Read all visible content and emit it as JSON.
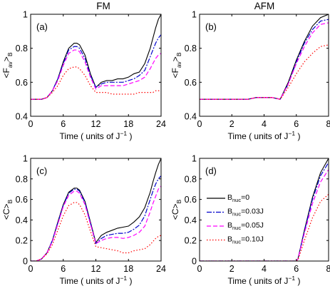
{
  "column_titles": [
    "FM",
    "AFM"
  ],
  "legend": {
    "entries": [
      {
        "label_main": "B",
        "label_sub": "nuc",
        "label_rest": "=0"
      },
      {
        "label_main": "B",
        "label_sub": "nuc",
        "label_rest": "=0.03J"
      },
      {
        "label_main": "B",
        "label_sub": "nuc",
        "label_rest": "=0.05J"
      },
      {
        "label_main": "B",
        "label_sub": "nuc",
        "label_rest": "=0.10J"
      }
    ]
  },
  "styles": {
    "colors": [
      "#000000",
      "#0000cc",
      "#ff00ff",
      "#ff0000"
    ],
    "dashes": [
      "",
      "7,2,2,2",
      "6,3",
      "1.5,2.5"
    ]
  },
  "chart_data": [
    {
      "type": "line",
      "panel_label": "(a)",
      "ylabel_main": "<F",
      "ylabel_sub": "av",
      "ylabel_mid": ">",
      "ylabel_sub2": "B",
      "xlabel_main": "Time ( units of J",
      "xlabel_sup": "−1",
      "xlabel_end": " )",
      "xlim": [
        0,
        24
      ],
      "ylim": [
        0.4,
        1.0
      ],
      "xticks": [
        "0",
        "6",
        "12",
        "18",
        "24"
      ],
      "yticks": [
        "0.4",
        "0.6",
        "0.8",
        "1"
      ],
      "x": [
        0,
        1,
        2,
        3,
        4,
        5,
        6,
        7,
        8,
        8.5,
        9,
        10,
        11,
        12,
        13,
        14,
        15,
        16,
        17,
        18,
        19,
        20,
        21,
        22,
        22.5,
        23,
        23.5,
        24
      ],
      "series": [
        {
          "values": [
            0.5,
            0.5,
            0.5,
            0.51,
            0.55,
            0.62,
            0.72,
            0.8,
            0.83,
            0.83,
            0.82,
            0.76,
            0.65,
            0.57,
            0.6,
            0.61,
            0.61,
            0.62,
            0.62,
            0.63,
            0.65,
            0.66,
            0.71,
            0.8,
            0.86,
            0.92,
            0.97,
            1.0
          ]
        },
        {
          "values": [
            0.5,
            0.5,
            0.5,
            0.51,
            0.55,
            0.62,
            0.71,
            0.79,
            0.81,
            0.81,
            0.8,
            0.74,
            0.64,
            0.57,
            0.59,
            0.6,
            0.6,
            0.6,
            0.6,
            0.61,
            0.62,
            0.64,
            0.67,
            0.75,
            0.79,
            0.83,
            0.86,
            0.88
          ]
        },
        {
          "values": [
            0.5,
            0.5,
            0.5,
            0.51,
            0.55,
            0.61,
            0.7,
            0.77,
            0.79,
            0.79,
            0.78,
            0.72,
            0.63,
            0.56,
            0.58,
            0.58,
            0.58,
            0.58,
            0.58,
            0.59,
            0.6,
            0.61,
            0.63,
            0.68,
            0.71,
            0.74,
            0.76,
            0.77
          ]
        },
        {
          "values": [
            0.5,
            0.5,
            0.5,
            0.51,
            0.54,
            0.58,
            0.64,
            0.68,
            0.69,
            0.69,
            0.68,
            0.64,
            0.58,
            0.54,
            0.54,
            0.54,
            0.53,
            0.53,
            0.53,
            0.53,
            0.53,
            0.54,
            0.54,
            0.54,
            0.54,
            0.55,
            0.55,
            0.55
          ]
        }
      ]
    },
    {
      "type": "line",
      "panel_label": "(b)",
      "ylabel_main": "<F",
      "ylabel_sub": "av",
      "ylabel_mid": ">",
      "ylabel_sub2": "B",
      "xlabel_main": "Time ( units of J",
      "xlabel_sup": "−1",
      "xlabel_end": " )",
      "xlim": [
        0,
        8
      ],
      "ylim": [
        0.4,
        1.0
      ],
      "xticks": [
        "0",
        "2",
        "4",
        "6",
        "8"
      ],
      "yticks": [
        "0.4",
        "0.6",
        "0.8",
        "1"
      ],
      "x": [
        0,
        1,
        2,
        3,
        3.5,
        4,
        4.5,
        5,
        5.5,
        6,
        6.5,
        7,
        7.5,
        8
      ],
      "series": [
        {
          "values": [
            0.5,
            0.5,
            0.5,
            0.5,
            0.51,
            0.51,
            0.51,
            0.5,
            0.6,
            0.73,
            0.84,
            0.93,
            0.98,
            1.0
          ]
        },
        {
          "values": [
            0.5,
            0.5,
            0.5,
            0.5,
            0.51,
            0.51,
            0.51,
            0.5,
            0.59,
            0.72,
            0.83,
            0.91,
            0.96,
            0.97
          ]
        },
        {
          "values": [
            0.5,
            0.5,
            0.5,
            0.5,
            0.51,
            0.51,
            0.51,
            0.5,
            0.59,
            0.71,
            0.81,
            0.89,
            0.94,
            0.95
          ]
        },
        {
          "values": [
            0.5,
            0.5,
            0.5,
            0.5,
            0.51,
            0.51,
            0.51,
            0.5,
            0.57,
            0.65,
            0.72,
            0.77,
            0.81,
            0.82
          ]
        }
      ]
    },
    {
      "type": "line",
      "panel_label": "(c)",
      "ylabel_main": "<C>",
      "ylabel_sub": "B",
      "xlabel_main": "Time ( units of J",
      "xlabel_sup": "−1",
      "xlabel_end": " )",
      "xlim": [
        0,
        24
      ],
      "ylim": [
        0,
        1.0
      ],
      "xticks": [
        "0",
        "6",
        "12",
        "18",
        "24"
      ],
      "yticks": [
        "0",
        "0.2",
        "0.4",
        "0.6",
        "0.8",
        "1"
      ],
      "x": [
        0,
        1,
        2,
        3,
        4,
        5,
        6,
        7,
        8,
        8.5,
        9,
        10,
        11,
        12,
        13,
        14,
        15,
        16,
        17,
        18,
        19,
        20,
        21,
        22,
        22.5,
        23,
        23.5,
        24
      ],
      "series": [
        {
          "values": [
            0.0,
            0.0,
            0.02,
            0.08,
            0.2,
            0.38,
            0.55,
            0.67,
            0.71,
            0.71,
            0.69,
            0.58,
            0.38,
            0.18,
            0.25,
            0.28,
            0.3,
            0.32,
            0.33,
            0.34,
            0.38,
            0.43,
            0.52,
            0.67,
            0.77,
            0.86,
            0.94,
            1.0
          ]
        },
        {
          "values": [
            0.0,
            0.0,
            0.02,
            0.08,
            0.2,
            0.37,
            0.54,
            0.66,
            0.7,
            0.7,
            0.68,
            0.57,
            0.37,
            0.17,
            0.22,
            0.25,
            0.26,
            0.27,
            0.27,
            0.28,
            0.31,
            0.35,
            0.44,
            0.6,
            0.68,
            0.75,
            0.8,
            0.83
          ]
        },
        {
          "values": [
            0.0,
            0.0,
            0.02,
            0.08,
            0.19,
            0.36,
            0.53,
            0.64,
            0.68,
            0.68,
            0.66,
            0.55,
            0.36,
            0.17,
            0.2,
            0.22,
            0.23,
            0.23,
            0.22,
            0.23,
            0.25,
            0.28,
            0.34,
            0.48,
            0.56,
            0.63,
            0.7,
            0.73
          ]
        },
        {
          "values": [
            0.0,
            0.0,
            0.02,
            0.07,
            0.16,
            0.3,
            0.44,
            0.54,
            0.57,
            0.57,
            0.55,
            0.45,
            0.29,
            0.14,
            0.13,
            0.12,
            0.11,
            0.1,
            0.08,
            0.08,
            0.1,
            0.11,
            0.12,
            0.16,
            0.19,
            0.22,
            0.24,
            0.25
          ]
        }
      ]
    },
    {
      "type": "line",
      "panel_label": "(d)",
      "ylabel_main": "<C>",
      "ylabel_sub": "B",
      "xlabel_main": "Time ( units of J",
      "xlabel_sup": "−1",
      "xlabel_end": " )",
      "xlim": [
        0,
        8
      ],
      "ylim": [
        0,
        1.0
      ],
      "xticks": [
        "0",
        "2",
        "4",
        "6",
        "8"
      ],
      "yticks": [
        "0",
        "0.2",
        "0.4",
        "0.6",
        "0.8",
        "1"
      ],
      "x": [
        0,
        1,
        2,
        3,
        4,
        5,
        6,
        6.1,
        6.5,
        7,
        7.5,
        8
      ],
      "series": [
        {
          "values": [
            0,
            0,
            0,
            0,
            0,
            0,
            0,
            0.02,
            0.3,
            0.62,
            0.86,
            1.0
          ]
        },
        {
          "values": [
            0,
            0,
            0,
            0,
            0,
            0,
            0,
            0.02,
            0.29,
            0.6,
            0.83,
            0.96
          ]
        },
        {
          "values": [
            0,
            0,
            0,
            0,
            0,
            0,
            0,
            0.02,
            0.27,
            0.56,
            0.77,
            0.89
          ]
        },
        {
          "values": [
            0,
            0,
            0,
            0,
            0,
            0,
            0,
            0.01,
            0.2,
            0.42,
            0.58,
            0.65
          ]
        }
      ]
    }
  ]
}
